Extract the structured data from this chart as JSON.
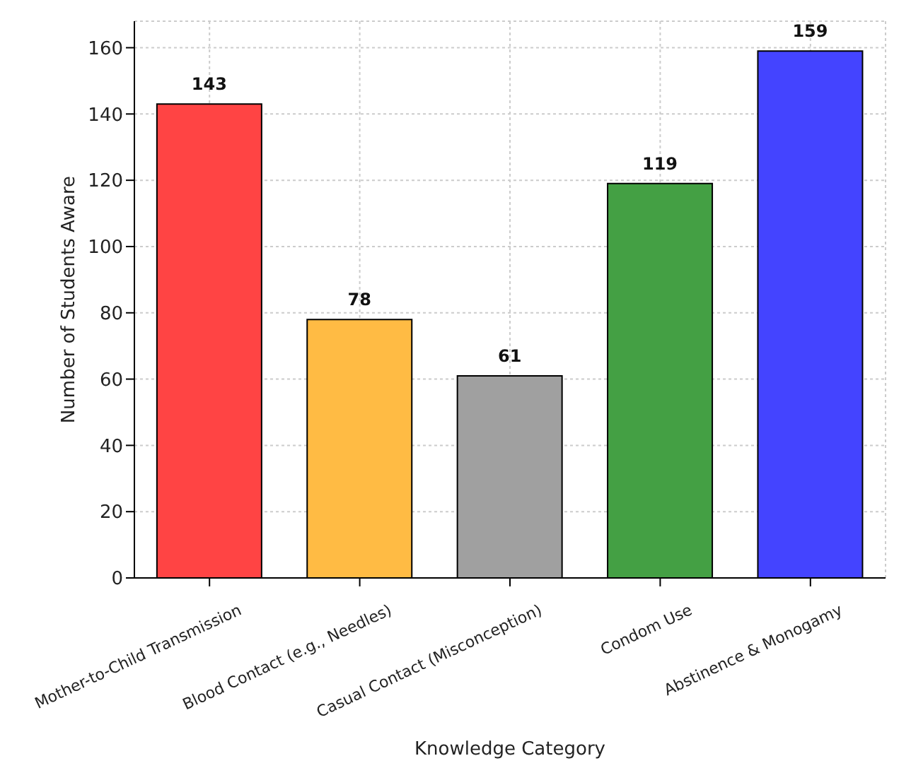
{
  "chart_data": {
    "type": "bar",
    "xlabel": "Knowledge Category",
    "ylabel": "Number of Students Aware",
    "categories": [
      "Mother-to-Child Transmission",
      "Blood Contact (e.g., Needles)",
      "Casual Contact (Misconception)",
      "Condom Use",
      "Abstinence & Monogamy"
    ],
    "values": [
      143,
      78,
      61,
      119,
      159
    ],
    "colors": [
      "#ff4444",
      "#ffbb44",
      "#a0a0a0",
      "#44a044",
      "#4444ff"
    ],
    "ylim": [
      0,
      168
    ],
    "yticks": [
      0,
      20,
      40,
      60,
      80,
      100,
      120,
      140,
      160
    ],
    "grid": true,
    "data_labels": true
  }
}
